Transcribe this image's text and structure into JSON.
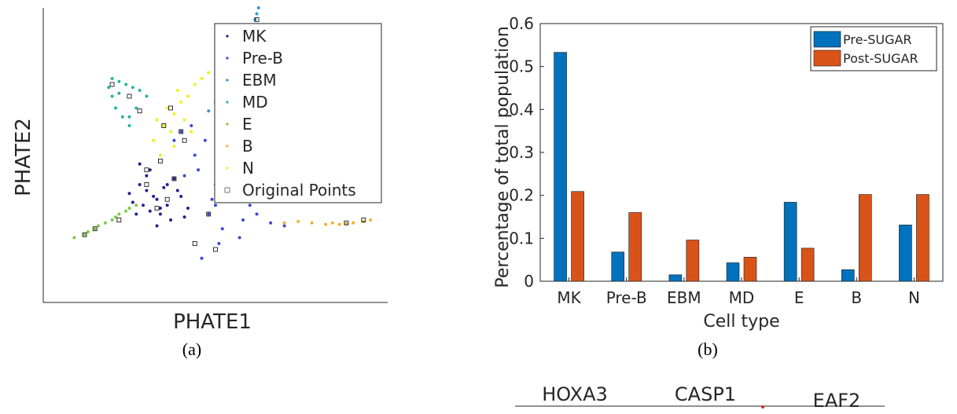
{
  "figure": {
    "caption_a": "(a)",
    "caption_b": "(b)"
  },
  "chart_data": [
    {
      "type": "scatter",
      "xlabel": "PHATE1",
      "ylabel": "PHATE2",
      "legend_position": "top-right",
      "legend": [
        {
          "name": "MK",
          "color": "#2a1d8f",
          "marker": "dot"
        },
        {
          "name": "Pre-B",
          "color": "#3a48d8",
          "marker": "dot"
        },
        {
          "name": "EBM",
          "color": "#2f97d8",
          "marker": "dot"
        },
        {
          "name": "MD",
          "color": "#26b3a4",
          "marker": "dot"
        },
        {
          "name": "E",
          "color": "#7ec84a",
          "marker": "dot"
        },
        {
          "name": "B",
          "color": "#f0b030",
          "marker": "dot"
        },
        {
          "name": "N",
          "color": "#f0f020",
          "marker": "dot"
        },
        {
          "name": "Original Points",
          "color": "#000000",
          "marker": "square"
        }
      ],
      "series": [
        {
          "name": "MK",
          "color": "#2a1d8f",
          "x": [
            0.33,
            0.3,
            0.36,
            0.28,
            0.4,
            0.34,
            0.25,
            0.38,
            0.31,
            0.42,
            0.29,
            0.35,
            0.27,
            0.37,
            0.32,
            0.3,
            0.39,
            0.33,
            0.26,
            0.36,
            0.41,
            0.28,
            0.34,
            0.31
          ],
          "y": [
            0.35,
            0.38,
            0.33,
            0.4,
            0.36,
            0.3,
            0.37,
            0.42,
            0.45,
            0.32,
            0.33,
            0.39,
            0.3,
            0.28,
            0.36,
            0.43,
            0.38,
            0.26,
            0.34,
            0.4,
            0.29,
            0.47,
            0.32,
            0.31
          ]
        },
        {
          "name": "Pre-B",
          "color": "#3a48d8",
          "x": [
            0.45,
            0.5,
            0.55,
            0.6,
            0.48,
            0.52,
            0.58,
            0.44,
            0.47,
            0.53,
            0.62,
            0.66,
            0.7,
            0.56,
            0.49,
            0.43,
            0.51,
            0.46,
            0.54,
            0.41,
            0.38,
            0.4,
            0.57,
            0.5
          ],
          "y": [
            0.45,
            0.4,
            0.37,
            0.33,
            0.3,
            0.25,
            0.28,
            0.5,
            0.55,
            0.48,
            0.3,
            0.27,
            0.26,
            0.42,
            0.35,
            0.6,
            0.2,
            0.15,
            0.35,
            0.43,
            0.55,
            0.58,
            0.22,
            0.33
          ]
        },
        {
          "name": "EBM",
          "color": "#2f97d8",
          "x": [
            0.48,
            0.5,
            0.52,
            0.54,
            0.56,
            0.58,
            0.59,
            0.6,
            0.61,
            0.62,
            0.615,
            0.62,
            0.625
          ],
          "y": [
            0.65,
            0.68,
            0.71,
            0.74,
            0.77,
            0.81,
            0.84,
            0.87,
            0.9,
            0.93,
            0.96,
            0.98,
            1.0
          ]
        },
        {
          "name": "MD",
          "color": "#26b3a4",
          "x": [
            0.25,
            0.23,
            0.21,
            0.2,
            0.19,
            0.2,
            0.22,
            0.24,
            0.26,
            0.28,
            0.3,
            0.27,
            0.25,
            0.22
          ],
          "y": [
            0.6,
            0.63,
            0.66,
            0.7,
            0.73,
            0.76,
            0.75,
            0.74,
            0.73,
            0.72,
            0.7,
            0.66,
            0.63,
            0.71
          ]
        },
        {
          "name": "E",
          "color": "#7ec84a",
          "x": [
            0.09,
            0.12,
            0.15,
            0.18,
            0.21,
            0.24,
            0.27,
            0.2,
            0.16,
            0.13,
            0.22,
            0.25
          ],
          "y": [
            0.22,
            0.23,
            0.25,
            0.27,
            0.29,
            0.31,
            0.33,
            0.28,
            0.26,
            0.24,
            0.3,
            0.32
          ]
        },
        {
          "name": "B",
          "color": "#f0b030",
          "x": [
            0.7,
            0.74,
            0.78,
            0.82,
            0.86,
            0.9,
            0.93,
            0.95,
            0.88,
            0.84
          ],
          "y": [
            0.27,
            0.275,
            0.27,
            0.265,
            0.265,
            0.27,
            0.275,
            0.28,
            0.268,
            0.27
          ]
        },
        {
          "name": "N",
          "color": "#f0f020",
          "x": [
            0.32,
            0.35,
            0.38,
            0.4,
            0.42,
            0.37,
            0.34,
            0.39,
            0.41,
            0.36,
            0.44,
            0.46,
            0.48,
            0.33,
            0.38,
            0.43
          ],
          "y": [
            0.55,
            0.6,
            0.64,
            0.68,
            0.7,
            0.58,
            0.5,
            0.72,
            0.62,
            0.66,
            0.74,
            0.76,
            0.78,
            0.62,
            0.53,
            0.58
          ]
        },
        {
          "name": "Original Points",
          "color": "#000000",
          "x": [
            0.33,
            0.36,
            0.3,
            0.38,
            0.41,
            0.35,
            0.28,
            0.25,
            0.2,
            0.22,
            0.15,
            0.12,
            0.48,
            0.52,
            0.58,
            0.62,
            0.62,
            0.6,
            0.55,
            0.93,
            0.88,
            0.3,
            0.34,
            0.44,
            0.5,
            0.37,
            0.4
          ],
          "y": [
            0.32,
            0.35,
            0.4,
            0.42,
            0.55,
            0.6,
            0.65,
            0.7,
            0.74,
            0.28,
            0.25,
            0.23,
            0.3,
            0.36,
            0.85,
            0.92,
            0.96,
            0.88,
            0.78,
            0.28,
            0.27,
            0.45,
            0.48,
            0.2,
            0.18,
            0.66,
            0.58
          ]
        }
      ]
    },
    {
      "type": "bar",
      "xlabel": "Cell type",
      "ylabel": "Percentage of total population",
      "ylim": [
        0,
        0.6
      ],
      "yticks": [
        "0",
        "0.1",
        "0.2",
        "0.3",
        "0.4",
        "0.5",
        "0.6"
      ],
      "legend_position": "top-right",
      "categories": [
        "MK",
        "Pre-B",
        "EBM",
        "MD",
        "E",
        "B",
        "N"
      ],
      "series": [
        {
          "name": "Pre-SUGAR",
          "color": "#0072bd",
          "values": [
            0.533,
            0.068,
            0.015,
            0.043,
            0.184,
            0.027,
            0.131
          ]
        },
        {
          "name": "Post-SUGAR",
          "color": "#d95319",
          "values": [
            0.209,
            0.16,
            0.096,
            0.056,
            0.077,
            0.202,
            0.202
          ]
        }
      ]
    },
    {
      "type": "table",
      "column_headers": [
        "HOXA3",
        "CASP1",
        "EAF2"
      ]
    }
  ]
}
